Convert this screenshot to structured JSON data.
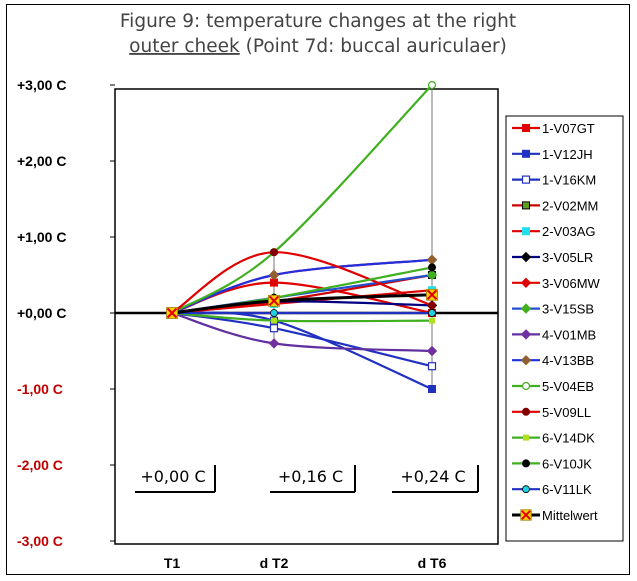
{
  "chart_data": {
    "type": "line",
    "title_line1": "Figure 9: temperature changes at the right",
    "title_line2_underlined": "outer cheek",
    "title_line2_rest": " (Point 7d: buccal auriculaer)",
    "categories": [
      "T1",
      "d T2",
      "d T6"
    ],
    "ylim": [
      -3,
      3
    ],
    "yticks": [
      {
        "value": 3,
        "label": "+3,00 C"
      },
      {
        "value": 2,
        "label": "+2,00 C"
      },
      {
        "value": 1,
        "label": "+1,00 C"
      },
      {
        "value": 0,
        "label": "+0,00 C"
      },
      {
        "value": -1,
        "label": "-1,00 C"
      },
      {
        "value": -2,
        "label": "-2,00 C"
      },
      {
        "value": -3,
        "label": "-3,00 C"
      }
    ],
    "colors": {
      "positive_tick": "#000000",
      "negative_tick": "#c00000"
    },
    "series": [
      {
        "name": "1-V07GT",
        "values": [
          0,
          0.4,
          0.0
        ],
        "color": "#e00000",
        "marker": "square-filled"
      },
      {
        "name": "1-V12JH",
        "values": [
          0,
          -0.1,
          -1.0
        ],
        "color": "#2030c0",
        "marker": "square-filled"
      },
      {
        "name": "1-V16KM",
        "values": [
          0,
          -0.2,
          -0.7
        ],
        "color": "#2030c0",
        "marker": "square-open"
      },
      {
        "name": "2-V02MM",
        "values": [
          0,
          0.15,
          0.5
        ],
        "color": "#cc0000",
        "marker": "square-green"
      },
      {
        "name": "2-V03AG",
        "values": [
          0,
          0.12,
          0.3
        ],
        "color": "#e00000",
        "marker": "square-cyan"
      },
      {
        "name": "3-V05LR",
        "values": [
          0,
          0.15,
          0.1
        ],
        "color": "#000080",
        "marker": "diamond-black"
      },
      {
        "name": "3-V06MW",
        "values": [
          0,
          0.5,
          0.7
        ],
        "color": "#e00000",
        "marker": "diamond-red"
      },
      {
        "name": "3-V15SB",
        "values": [
          0,
          0.2,
          0.5
        ],
        "color": "#2050d0",
        "marker": "diamond-green"
      },
      {
        "name": "4-V01MB",
        "values": [
          0,
          -0.4,
          -0.5
        ],
        "color": "#6030a0",
        "marker": "diamond-purple"
      },
      {
        "name": "4-V13BB",
        "values": [
          0,
          0.5,
          0.7
        ],
        "color": "#2030e0",
        "marker": "diamond-brown"
      },
      {
        "name": "5-V04EB",
        "values": [
          0,
          0.8,
          3.0
        ],
        "color": "#40b020",
        "marker": "circle-open"
      },
      {
        "name": "5-V09LL",
        "values": [
          0,
          0.8,
          0.1
        ],
        "color": "#e00000",
        "marker": "circle-darkred"
      },
      {
        "name": "6-V14DK",
        "values": [
          0,
          -0.1,
          -0.1
        ],
        "color": "#40b020",
        "marker": "square-small-yellowgreen"
      },
      {
        "name": "6-V10JK",
        "values": [
          0,
          0.2,
          0.6
        ],
        "color": "#40b020",
        "marker": "circle-black"
      },
      {
        "name": "6-V11LK",
        "values": [
          0,
          0.0,
          0.0
        ],
        "color": "#2030c0",
        "marker": "circle-cyan"
      },
      {
        "name": "Mittelwert",
        "values": [
          0,
          0.16,
          0.24
        ],
        "color": "#000000",
        "marker": "x-yellow",
        "bold": true
      }
    ],
    "boxes": [
      "+0,00 C",
      "+0,16 C",
      "+0,24 C"
    ]
  }
}
